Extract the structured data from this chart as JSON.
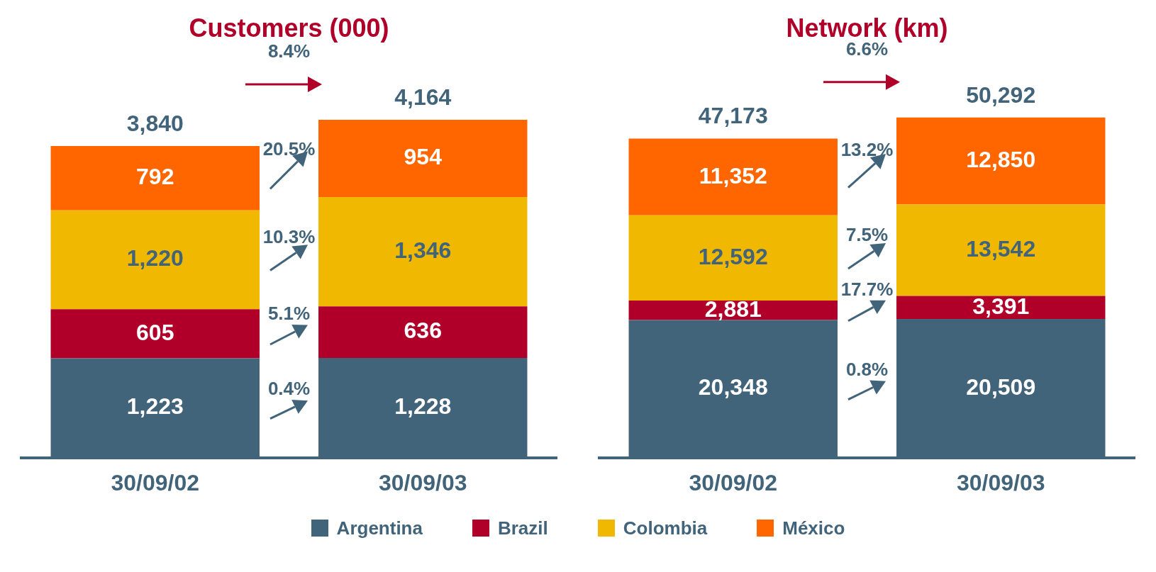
{
  "chart_data": [
    {
      "type": "bar",
      "title": "Customers (000)",
      "categories": [
        "30/09/02",
        "30/09/03"
      ],
      "stacked": true,
      "legend": "bottom",
      "series": [
        {
          "name": "Argentina",
          "color": "#42647a",
          "values": [
            1223,
            1228
          ],
          "value_labels": [
            "1,223",
            "1,228"
          ]
        },
        {
          "name": "Brazil",
          "color": "#b0002a",
          "values": [
            605,
            636
          ],
          "value_labels": [
            "605",
            "636"
          ]
        },
        {
          "name": "Colombia",
          "color": "#f0b800",
          "values": [
            1220,
            1346
          ],
          "value_labels": [
            "1,220",
            "1,346"
          ]
        },
        {
          "name": "México",
          "color": "#ff6600",
          "values": [
            792,
            954
          ],
          "value_labels": [
            "792",
            "954"
          ]
        }
      ],
      "totals": [
        "3,840",
        "4,164"
      ],
      "annotations": [
        "8.4%",
        "0.4%",
        "5.1%",
        "10.3%",
        "20.5%"
      ]
    },
    {
      "type": "bar",
      "title": "Network (km)",
      "categories": [
        "30/09/02",
        "30/09/03"
      ],
      "stacked": true,
      "series": [
        {
          "color": "#42647a",
          "values": [
            20348,
            20509
          ],
          "value_labels": [
            "20,348",
            "20,509"
          ]
        },
        {
          "color": "#b0002a",
          "values": [
            2881,
            3391
          ],
          "value_labels": [
            "2,881",
            "3,391"
          ]
        },
        {
          "color": "#f0b800",
          "values": [
            12592,
            13542
          ],
          "value_labels": [
            "12,592",
            "13,542"
          ]
        },
        {
          "color": "#ff6600",
          "values": [
            11352,
            12850
          ],
          "value_labels": [
            "11,352",
            "12,850"
          ]
        }
      ],
      "totals": [
        "47,173",
        "50,292"
      ],
      "annotations": [
        "6.6%",
        "0.8%",
        "17.7%",
        "7.5%",
        "13.2%"
      ]
    }
  ]
}
